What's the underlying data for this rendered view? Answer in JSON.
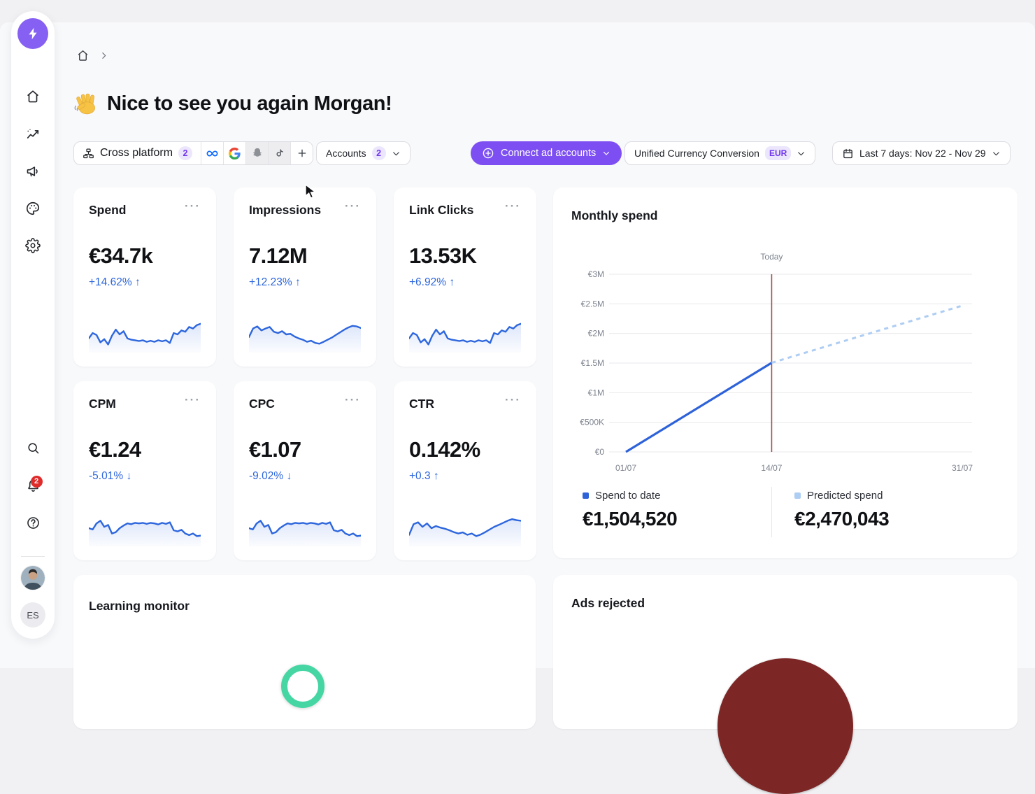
{
  "ui": {
    "menu_dots": "···"
  },
  "colors": {
    "accent_purple": "#7d4ff2",
    "badge_bg": "#ece6fc",
    "badge_text": "#7137ee",
    "change_blue": "#2d66dd",
    "spark_line": "#2d66dd",
    "today_line": "#a0534f",
    "grid": "#e9e9ec",
    "ring_teal": "#45d6a4",
    "circle_maroon": "#7c2726"
  },
  "sidebar": {
    "notification_badge": "2",
    "avatar_initials": "ES"
  },
  "header": {
    "greeting": "Nice to see you again Morgan!",
    "wave_emoji": "👋"
  },
  "filters": {
    "cross_platform": {
      "label": "Cross platform",
      "count": "2"
    },
    "platforms": [
      "meta",
      "google",
      "snapchat",
      "tiktok",
      "add"
    ],
    "accounts": {
      "label": "Accounts",
      "count": "2"
    },
    "connect_button": {
      "label": "Connect ad accounts"
    },
    "currency": {
      "label": "Unified Currency Conversion",
      "badge": "EUR"
    },
    "date_range": {
      "label": "Last 7 days: Nov 22 - Nov 29"
    }
  },
  "kpis": [
    {
      "title": "Spend",
      "value": "€34.7k",
      "change": "+14.62%",
      "arrow": "↑",
      "spark": [
        0.35,
        0.55,
        0.48,
        0.2,
        0.32,
        0.12,
        0.45,
        0.68,
        0.5,
        0.62,
        0.35,
        0.3,
        0.28,
        0.25,
        0.28,
        0.22,
        0.26,
        0.22,
        0.28,
        0.24,
        0.28,
        0.18,
        0.55,
        0.5,
        0.65,
        0.6,
        0.78,
        0.72,
        0.85,
        0.9
      ]
    },
    {
      "title": "Impressions",
      "value": "7.12M",
      "change": "+12.23%",
      "arrow": "↑",
      "spark": [
        0.4,
        0.72,
        0.8,
        0.65,
        0.72,
        0.78,
        0.6,
        0.55,
        0.62,
        0.5,
        0.52,
        0.42,
        0.35,
        0.3,
        0.22,
        0.26,
        0.18,
        0.15,
        0.22,
        0.3,
        0.38,
        0.48,
        0.58,
        0.68,
        0.76,
        0.82,
        0.8,
        0.74
      ]
    },
    {
      "title": "Link Clicks",
      "value": "13.53K",
      "change": "+6.92%",
      "arrow": "↑",
      "spark": [
        0.35,
        0.55,
        0.48,
        0.2,
        0.32,
        0.12,
        0.45,
        0.68,
        0.5,
        0.62,
        0.35,
        0.3,
        0.28,
        0.25,
        0.28,
        0.22,
        0.26,
        0.22,
        0.28,
        0.24,
        0.28,
        0.18,
        0.55,
        0.5,
        0.65,
        0.6,
        0.78,
        0.72,
        0.85,
        0.9
      ]
    },
    {
      "title": "CPM",
      "value": "€1.24",
      "change": "-5.01%",
      "arrow": "↓",
      "spark": [
        0.5,
        0.45,
        0.68,
        0.78,
        0.55,
        0.62,
        0.3,
        0.35,
        0.5,
        0.6,
        0.68,
        0.65,
        0.7,
        0.68,
        0.7,
        0.66,
        0.7,
        0.68,
        0.64,
        0.7,
        0.66,
        0.72,
        0.42,
        0.38,
        0.44,
        0.3,
        0.24,
        0.3,
        0.2,
        0.22
      ]
    },
    {
      "title": "CPC",
      "value": "€1.07",
      "change": "-9.02%",
      "arrow": "↓",
      "spark": [
        0.5,
        0.45,
        0.68,
        0.78,
        0.55,
        0.62,
        0.3,
        0.35,
        0.5,
        0.6,
        0.68,
        0.65,
        0.7,
        0.68,
        0.7,
        0.66,
        0.7,
        0.68,
        0.64,
        0.7,
        0.66,
        0.72,
        0.42,
        0.38,
        0.44,
        0.3,
        0.24,
        0.3,
        0.2,
        0.22
      ]
    },
    {
      "title": "CTR",
      "value": "0.142%",
      "change": "+0.3",
      "arrow": "↑",
      "spark": [
        0.25,
        0.65,
        0.72,
        0.55,
        0.68,
        0.5,
        0.58,
        0.52,
        0.48,
        0.42,
        0.35,
        0.3,
        0.34,
        0.25,
        0.3,
        0.2,
        0.26,
        0.35,
        0.45,
        0.55,
        0.62,
        0.7,
        0.78,
        0.84,
        0.8,
        0.78
      ]
    }
  ],
  "monthly_spend": {
    "title": "Monthly spend",
    "today_label": "Today",
    "legend": [
      {
        "label": "Spend to date",
        "value": "€1,504,520",
        "color": "#2e62d9"
      },
      {
        "label": "Predicted spend",
        "value": "€2,470,043",
        "color": "#aecdf3"
      }
    ]
  },
  "chart_data": {
    "type": "line",
    "title": "Monthly spend",
    "xlabel": "",
    "ylabel": "",
    "x_ticks": [
      "01/07",
      "14/07",
      "31/07"
    ],
    "x_tick_days": [
      1,
      14,
      31
    ],
    "y_ticks": [
      "€3M",
      "€2.5M",
      "€2M",
      "€1.5M",
      "€1M",
      "€500K",
      "€0"
    ],
    "y_tick_values": [
      3000000,
      2500000,
      2000000,
      1500000,
      1000000,
      500000,
      0
    ],
    "xlim_days": [
      1,
      31
    ],
    "ylim": [
      0,
      3000000
    ],
    "today_day": 14,
    "grid": true,
    "legend_position": "bottom",
    "series": [
      {
        "name": "Spend to date",
        "style": "solid",
        "color": "#2e62d9",
        "points": [
          [
            1,
            0
          ],
          [
            14,
            1504520
          ]
        ]
      },
      {
        "name": "Predicted spend",
        "style": "dashed",
        "color": "#aecdf3",
        "points": [
          [
            14,
            1504520
          ],
          [
            31,
            2470043
          ]
        ]
      }
    ]
  },
  "bottom_cards": [
    {
      "title": "Learning monitor"
    },
    {
      "title": "Ads rejected"
    }
  ]
}
